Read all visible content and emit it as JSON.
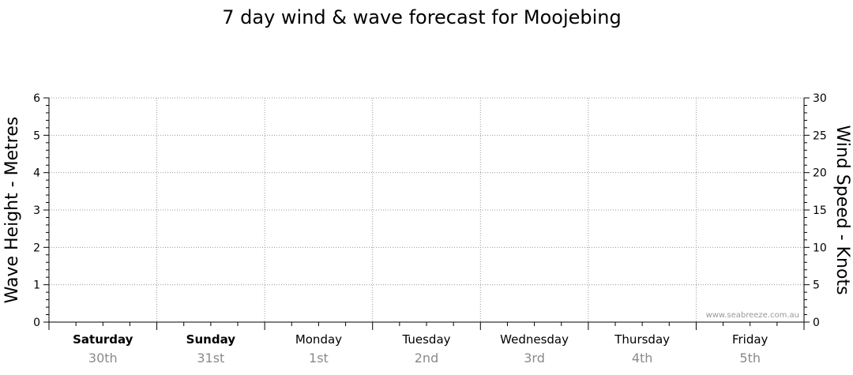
{
  "chart_data": {
    "type": "line",
    "title": "7 day wind & wave forecast for Moojebing",
    "y_left_label": "Wave Height - Metres",
    "y_right_label": "Wind Speed - Knots",
    "y_left_range": [
      0,
      6
    ],
    "y_left_ticks": [
      "0",
      "1",
      "2",
      "3",
      "4",
      "5",
      "6"
    ],
    "y_right_range": [
      0,
      30
    ],
    "y_right_ticks": [
      "0",
      "5",
      "10",
      "15",
      "20",
      "25",
      "30"
    ],
    "days": [
      {
        "day": "Saturday",
        "date": "30th",
        "bold": true
      },
      {
        "day": "Sunday",
        "date": "31st",
        "bold": true
      },
      {
        "day": "Monday",
        "date": "1st",
        "bold": false
      },
      {
        "day": "Tuesday",
        "date": "2nd",
        "bold": false
      },
      {
        "day": "Wednesday",
        "date": "3rd",
        "bold": false
      },
      {
        "day": "Thursday",
        "date": "4th",
        "bold": false
      },
      {
        "day": "Friday",
        "date": "5th",
        "bold": false
      }
    ],
    "grid": true,
    "series": [],
    "watermark": "www.seabreeze.com.au"
  }
}
